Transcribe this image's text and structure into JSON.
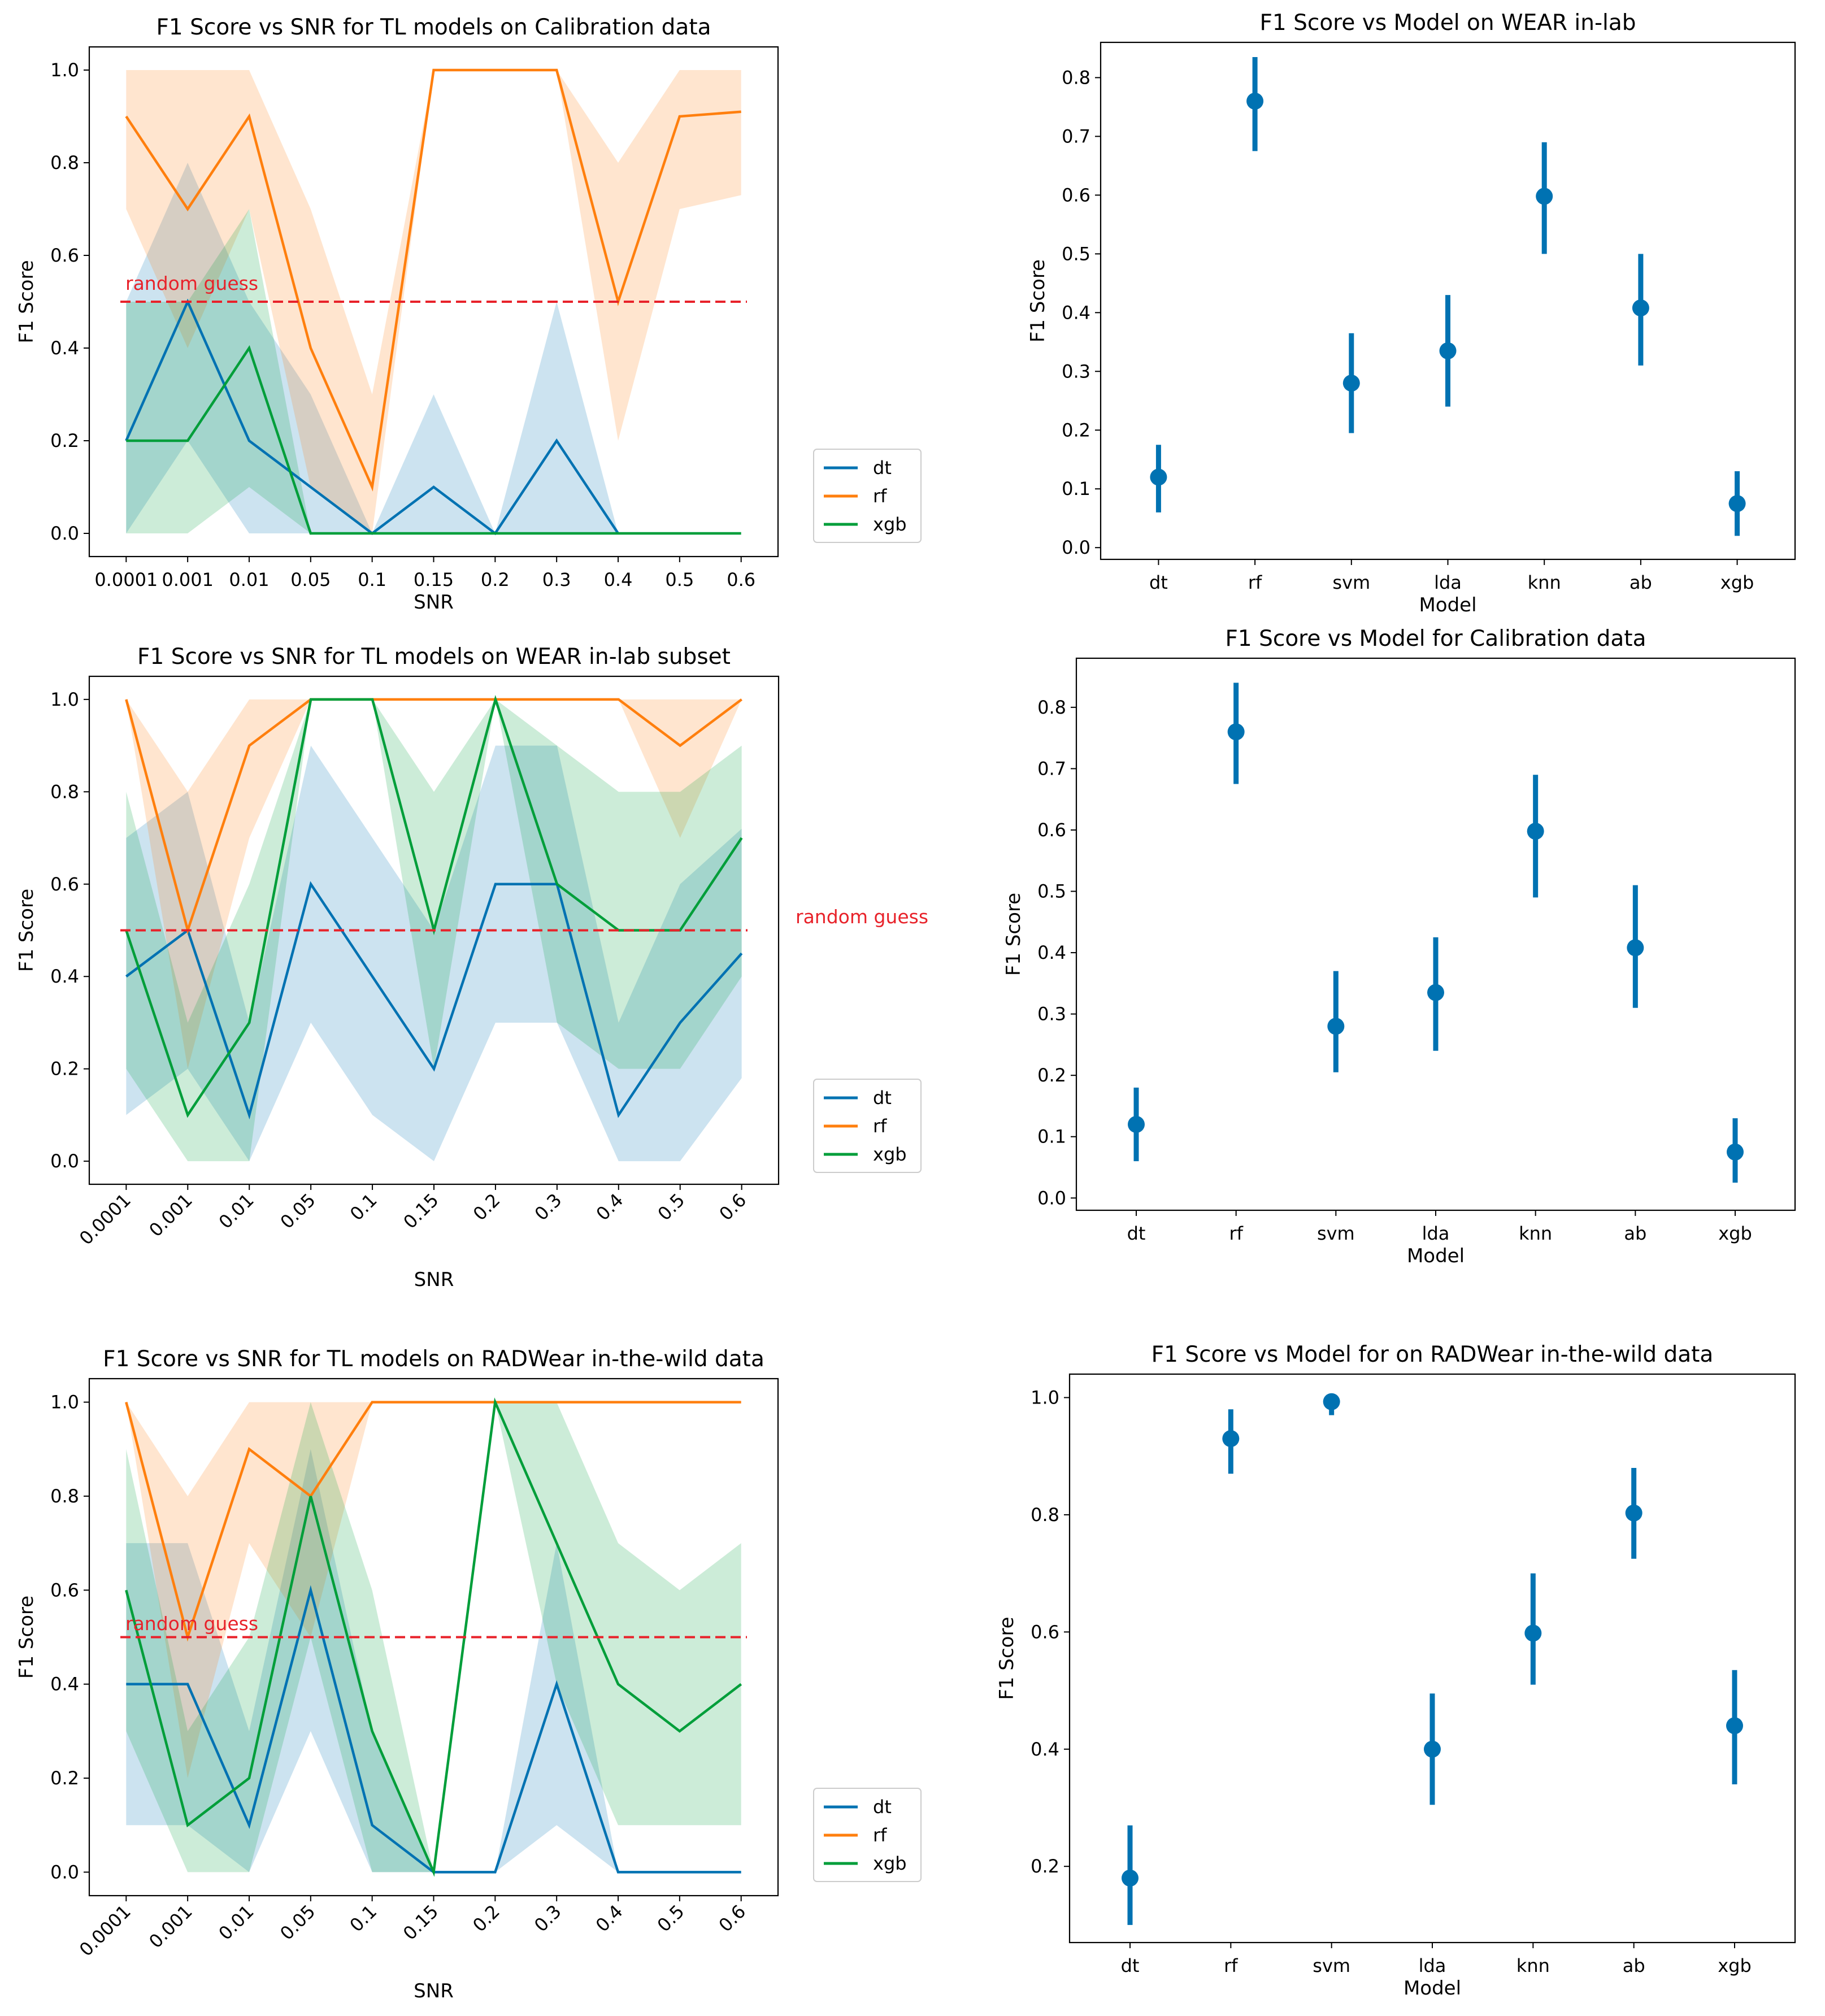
{
  "colors": {
    "dt": "#0072B2",
    "rf": "#FF7F0E",
    "xgb": "#009E3A",
    "point": "#0072B2",
    "random_guess": "#E8222A",
    "axis": "#000000"
  },
  "chart_data": [
    {
      "type": "line",
      "title": "F1 Score vs SNR for TL models on Calibration data",
      "xlabel": "SNR",
      "ylabel": "F1 Score",
      "categories": [
        "0.0001",
        "0.001",
        "0.01",
        "0.05",
        "0.1",
        "0.15",
        "0.2",
        "0.3",
        "0.4",
        "0.5",
        "0.6"
      ],
      "ylim": [
        -0.05,
        1.05
      ],
      "yticks": [
        "0.0",
        "0.2",
        "0.4",
        "0.6",
        "0.8",
        "1.0"
      ],
      "series": [
        {
          "name": "dt",
          "values": [
            0.2,
            0.5,
            0.2,
            0.1,
            0.0,
            0.1,
            0.0,
            0.2,
            0.0,
            null,
            null
          ],
          "lower": [
            0.0,
            0.2,
            0.0,
            0.0,
            0.0,
            0.0,
            0.0,
            0.0,
            0.0,
            null,
            null
          ],
          "upper": [
            0.5,
            0.8,
            0.5,
            0.3,
            0.0,
            0.3,
            0.0,
            0.5,
            0.0,
            null,
            null
          ]
        },
        {
          "name": "rf",
          "values": [
            0.9,
            0.7,
            0.9,
            0.4,
            0.1,
            1.0,
            1.0,
            1.0,
            0.5,
            0.9,
            0.91
          ],
          "lower": [
            0.7,
            0.4,
            0.7,
            0.1,
            0.0,
            1.0,
            1.0,
            1.0,
            0.2,
            0.7,
            0.73
          ],
          "upper": [
            1.0,
            1.0,
            1.0,
            0.7,
            0.3,
            1.0,
            1.0,
            1.0,
            0.8,
            1.0,
            1.0
          ]
        },
        {
          "name": "xgb",
          "values": [
            0.2,
            0.2,
            0.4,
            0.0,
            0.0,
            0.0,
            0.0,
            0.0,
            0.0,
            0.0,
            0.0
          ],
          "lower": [
            0.0,
            0.0,
            0.1,
            0.0,
            0.0,
            0.0,
            0.0,
            0.0,
            0.0,
            0.0,
            0.0
          ],
          "upper": [
            0.5,
            0.5,
            0.7,
            0.0,
            0.0,
            0.0,
            0.0,
            0.0,
            0.0,
            0.0,
            0.0
          ]
        }
      ],
      "reference_line": {
        "y": 0.5,
        "label": "random guess"
      },
      "legend": [
        "dt",
        "rf",
        "xgb"
      ]
    },
    {
      "type": "scatter",
      "title": "F1 Score vs Model on WEAR in-lab",
      "xlabel": "Model",
      "ylabel": "F1 Score",
      "categories": [
        "dt",
        "rf",
        "svm",
        "lda",
        "knn",
        "ab",
        "xgb"
      ],
      "values": [
        0.12,
        0.76,
        0.28,
        0.335,
        0.598,
        0.408,
        0.075
      ],
      "lower": [
        0.06,
        0.675,
        0.195,
        0.24,
        0.5,
        0.31,
        0.02
      ],
      "upper": [
        0.175,
        0.835,
        0.365,
        0.43,
        0.69,
        0.5,
        0.13
      ],
      "ylim": [
        -0.02,
        0.86
      ],
      "yticks": [
        "0.0",
        "0.1",
        "0.2",
        "0.3",
        "0.4",
        "0.5",
        "0.6",
        "0.7",
        "0.8"
      ]
    },
    {
      "type": "line",
      "title": "F1 Score vs SNR for TL models on WEAR in-lab subset",
      "xlabel": "SNR",
      "ylabel": "F1 Score",
      "categories": [
        "0.0001",
        "0.001",
        "0.01",
        "0.05",
        "0.1",
        "0.15",
        "0.2",
        "0.3",
        "0.4",
        "0.5",
        "0.6"
      ],
      "ylim": [
        -0.05,
        1.05
      ],
      "yticks": [
        "0.0",
        "0.2",
        "0.4",
        "0.6",
        "0.8",
        "1.0"
      ],
      "series": [
        {
          "name": "dt",
          "values": [
            0.4,
            0.5,
            0.1,
            0.6,
            0.4,
            0.2,
            0.6,
            0.6,
            0.1,
            0.3,
            0.45
          ],
          "lower": [
            0.1,
            0.2,
            0.0,
            0.3,
            0.1,
            0.0,
            0.3,
            0.3,
            0.0,
            0.0,
            0.18
          ],
          "upper": [
            0.7,
            0.8,
            0.3,
            0.9,
            0.7,
            0.5,
            0.9,
            0.9,
            0.3,
            0.6,
            0.72
          ]
        },
        {
          "name": "rf",
          "values": [
            1.0,
            0.5,
            0.9,
            1.0,
            1.0,
            1.0,
            1.0,
            1.0,
            1.0,
            0.9,
            1.0
          ],
          "lower": [
            1.0,
            0.2,
            0.7,
            1.0,
            1.0,
            1.0,
            1.0,
            1.0,
            1.0,
            0.7,
            1.0
          ],
          "upper": [
            1.0,
            0.8,
            1.0,
            1.0,
            1.0,
            1.0,
            1.0,
            1.0,
            1.0,
            1.0,
            1.0
          ]
        },
        {
          "name": "xgb",
          "values": [
            0.5,
            0.1,
            0.3,
            1.0,
            1.0,
            0.5,
            1.0,
            0.6,
            0.5,
            0.5,
            0.7
          ],
          "lower": [
            0.2,
            0.0,
            0.0,
            1.0,
            1.0,
            0.2,
            1.0,
            0.3,
            0.2,
            0.2,
            0.4
          ],
          "upper": [
            0.8,
            0.3,
            0.6,
            1.0,
            1.0,
            0.8,
            1.0,
            0.9,
            0.8,
            0.8,
            0.9
          ]
        }
      ],
      "reference_line": {
        "y": 0.5,
        "label": "random guess"
      },
      "legend": [
        "dt",
        "rf",
        "xgb"
      ]
    },
    {
      "type": "scatter",
      "title": "F1 Score vs Model for Calibration data",
      "xlabel": "Model",
      "ylabel": "F1 Score",
      "categories": [
        "dt",
        "rf",
        "svm",
        "lda",
        "knn",
        "ab",
        "xgb"
      ],
      "values": [
        0.12,
        0.76,
        0.28,
        0.335,
        0.598,
        0.408,
        0.075
      ],
      "lower": [
        0.06,
        0.675,
        0.205,
        0.24,
        0.49,
        0.31,
        0.025
      ],
      "upper": [
        0.18,
        0.84,
        0.37,
        0.425,
        0.69,
        0.51,
        0.13
      ],
      "ylim": [
        -0.02,
        0.88
      ],
      "yticks": [
        "0.0",
        "0.1",
        "0.2",
        "0.3",
        "0.4",
        "0.5",
        "0.6",
        "0.7",
        "0.8"
      ]
    },
    {
      "type": "line",
      "title": "F1 Score vs SNR for TL models on RADWear in-the-wild data",
      "xlabel": "SNR",
      "ylabel": "F1 Score",
      "categories": [
        "0.0001",
        "0.001",
        "0.01",
        "0.05",
        "0.1",
        "0.15",
        "0.2",
        "0.3",
        "0.4",
        "0.5",
        "0.6"
      ],
      "ylim": [
        -0.05,
        1.05
      ],
      "yticks": [
        "0.0",
        "0.2",
        "0.4",
        "0.6",
        "0.8",
        "1.0"
      ],
      "series": [
        {
          "name": "dt",
          "values": [
            0.4,
            0.4,
            0.1,
            0.6,
            0.1,
            0.0,
            0.0,
            0.4,
            0.0,
            0.0,
            0.0
          ],
          "lower": [
            0.1,
            0.1,
            0.0,
            0.3,
            0.0,
            0.0,
            0.0,
            0.1,
            0.0,
            0.0,
            0.0
          ],
          "upper": [
            0.7,
            0.7,
            0.3,
            0.9,
            0.3,
            0.0,
            0.0,
            0.7,
            0.0,
            0.0,
            0.0
          ]
        },
        {
          "name": "rf",
          "values": [
            1.0,
            0.5,
            0.9,
            0.8,
            1.0,
            1.0,
            1.0,
            1.0,
            1.0,
            1.0,
            1.0
          ],
          "lower": [
            1.0,
            0.2,
            0.7,
            0.5,
            1.0,
            1.0,
            1.0,
            1.0,
            1.0,
            1.0,
            1.0
          ],
          "upper": [
            1.0,
            0.8,
            1.0,
            1.0,
            1.0,
            1.0,
            1.0,
            1.0,
            1.0,
            1.0,
            1.0
          ]
        },
        {
          "name": "xgb",
          "values": [
            0.6,
            0.1,
            0.2,
            0.8,
            0.3,
            0.0,
            1.0,
            0.7,
            0.4,
            0.3,
            0.4
          ],
          "lower": [
            0.3,
            0.0,
            0.0,
            0.5,
            0.0,
            0.0,
            1.0,
            0.4,
            0.1,
            0.1,
            0.1
          ],
          "upper": [
            0.9,
            0.3,
            0.5,
            1.0,
            0.6,
            0.0,
            1.0,
            1.0,
            0.7,
            0.6,
            0.7
          ]
        }
      ],
      "reference_line": {
        "y": 0.5,
        "label": "random guess"
      },
      "legend": [
        "dt",
        "rf",
        "xgb"
      ]
    },
    {
      "type": "scatter",
      "title": "F1 Score vs Model for on RADWear in-the-wild data",
      "xlabel": "Model",
      "ylabel": "F1 Score",
      "categories": [
        "dt",
        "rf",
        "svm",
        "lda",
        "knn",
        "ab",
        "xgb"
      ],
      "values": [
        0.18,
        0.93,
        0.993,
        0.4,
        0.598,
        0.803,
        0.44
      ],
      "lower": [
        0.1,
        0.87,
        0.97,
        0.305,
        0.51,
        0.725,
        0.34
      ],
      "upper": [
        0.27,
        0.98,
        1.0,
        0.495,
        0.7,
        0.88,
        0.535
      ],
      "ylim": [
        0.07,
        1.04
      ],
      "yticks": [
        "0.2",
        "0.4",
        "0.6",
        "0.8",
        "1.0"
      ]
    }
  ]
}
